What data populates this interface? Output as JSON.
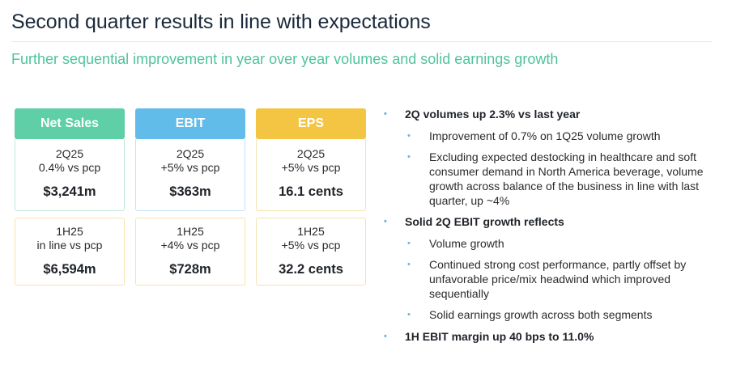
{
  "title": "Second quarter results in line with expectations",
  "subtitle": "Further sequential improvement in year over year volumes and solid earnings growth",
  "colors": {
    "net_sales": "#5ecfa6",
    "ebit": "#62bce9",
    "eps": "#f4c542",
    "subtitle": "#4fc39b",
    "bullet": "#6fb2d7"
  },
  "cards": [
    {
      "header": "Net Sales",
      "q_period": "2Q25",
      "q_delta": "0.4% vs pcp",
      "q_value": "$3,241m",
      "h_period": "1H25",
      "h_delta": "in line vs pcp",
      "h_value": "$6,594m"
    },
    {
      "header": "EBIT",
      "q_period": "2Q25",
      "q_delta": "+5% vs pcp",
      "q_value": "$363m",
      "h_period": "1H25",
      "h_delta": "+4% vs pcp",
      "h_value": "$728m"
    },
    {
      "header": "EPS",
      "q_period": "2Q25",
      "q_delta": "+5% vs pcp",
      "q_value": "16.1 cents",
      "h_period": "1H25",
      "h_delta": "+5% vs pcp",
      "h_value": "32.2 cents"
    }
  ],
  "bullet_glyph": "•",
  "bullets": {
    "b1": "2Q volumes up 2.3% vs last year",
    "b1_1": "Improvement of 0.7% on 1Q25 volume growth",
    "b1_2": "Excluding expected destocking in healthcare and soft consumer demand in North America beverage, volume growth across balance of the business in line with last quarter, up ~4%",
    "b2": "Solid 2Q EBIT growth reflects",
    "b2_1": "Volume growth",
    "b2_2": "Continued strong cost performance, partly offset by unfavorable price/mix headwind which improved sequentially",
    "b2_3": "Solid earnings growth across both segments",
    "b3": "1H EBIT margin up 40 bps to 11.0%"
  }
}
